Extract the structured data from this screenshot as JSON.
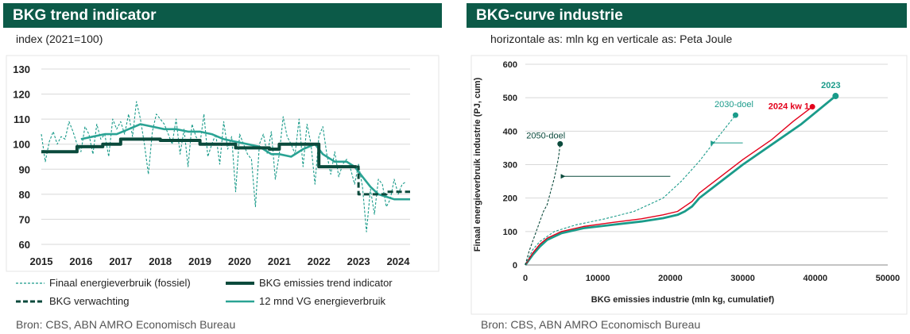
{
  "left": {
    "title": "BKG trend indicator",
    "subtitle": "index (2021=100)",
    "source": "Bron: CBS, ABN AMRO Economisch Bureau",
    "colors": {
      "dark": "#0b4a3c",
      "mid": "#1a9b8a",
      "light": "#2aa394",
      "grid": "#d8d8d8"
    },
    "legend": [
      {
        "label": "Finaal energieverbruik (fossiel)",
        "style": "thin-dashed",
        "color": "#1a9b8a"
      },
      {
        "label": "BKG emissies trend indicator",
        "style": "thick-solid",
        "color": "#0b4a3c"
      },
      {
        "label": "BKG verwachting",
        "style": "thick-dashed",
        "color": "#0b4a3c"
      },
      {
        "label": "12 mnd VG energieverbruik",
        "style": "solid",
        "color": "#2aa394"
      }
    ]
  },
  "right": {
    "title": "BKG-curve industrie",
    "subtitle": "horizontale as: mln kg en verticale as: Peta Joule",
    "source": "Bron: CBS, ABN AMRO Economisch Bureau",
    "colors": {
      "teal": "#1a9b8a",
      "dark": "#0b4a3c",
      "red": "#e3001b",
      "grid": "#d8d8d8"
    }
  },
  "chart_data": [
    {
      "type": "line",
      "title": "BKG trend indicator",
      "ylabel": "index (2021=100)",
      "xlim": [
        2015,
        2024.3
      ],
      "ylim": [
        60,
        130
      ],
      "xticks": [
        "2015",
        "2016",
        "2017",
        "2018",
        "2019",
        "2020",
        "2021",
        "2022",
        "2023",
        "2024"
      ],
      "yticks": [
        "60",
        "70",
        "80",
        "90",
        "100",
        "110",
        "120",
        "130"
      ],
      "grid": "horizontal",
      "series": [
        {
          "name": "Finaal energieverbruik (fossiel)",
          "x": [
            2015.0,
            2015.1,
            2015.2,
            2015.3,
            2015.4,
            2015.5,
            2015.6,
            2015.7,
            2015.8,
            2015.9,
            2016.0,
            2016.1,
            2016.2,
            2016.3,
            2016.4,
            2016.5,
            2016.6,
            2016.7,
            2016.8,
            2016.9,
            2017.0,
            2017.1,
            2017.2,
            2017.3,
            2017.4,
            2017.5,
            2017.6,
            2017.7,
            2017.8,
            2017.9,
            2018.0,
            2018.1,
            2018.2,
            2018.3,
            2018.4,
            2018.5,
            2018.6,
            2018.7,
            2018.8,
            2018.9,
            2019.0,
            2019.1,
            2019.2,
            2019.3,
            2019.4,
            2019.5,
            2019.6,
            2019.7,
            2019.8,
            2019.9,
            2020.0,
            2020.1,
            2020.2,
            2020.3,
            2020.4,
            2020.5,
            2020.6,
            2020.7,
            2020.8,
            2020.9,
            2021.0,
            2021.1,
            2021.2,
            2021.3,
            2021.4,
            2021.5,
            2021.6,
            2021.7,
            2021.8,
            2021.9,
            2022.0,
            2022.1,
            2022.2,
            2022.3,
            2022.4,
            2022.5,
            2022.6,
            2022.7,
            2022.8,
            2022.9,
            2023.0,
            2023.1,
            2023.2,
            2023.3,
            2023.4,
            2023.5,
            2023.6,
            2023.7,
            2023.8,
            2023.9,
            2024.0,
            2024.1,
            2024.2
          ],
          "values": [
            104,
            93,
            101,
            105,
            100,
            103,
            102,
            109,
            105,
            100,
            97,
            107,
            104,
            96,
            108,
            102,
            104,
            95,
            110,
            106,
            109,
            104,
            112,
            103,
            117,
            110,
            100,
            88,
            105,
            112,
            110,
            108,
            104,
            100,
            110,
            96,
            106,
            91,
            108,
            103,
            100,
            112,
            95,
            100,
            104,
            92,
            109,
            98,
            103,
            81,
            104,
            100,
            96,
            94,
            75,
            100,
            104,
            96,
            105,
            86,
            96,
            111,
            103,
            100,
            96,
            110,
            91,
            108,
            100,
            84,
            103,
            107,
            96,
            88,
            97,
            87,
            92,
            94,
            90,
            84,
            92,
            83,
            65,
            82,
            72,
            86,
            84,
            75,
            78,
            86,
            80,
            84,
            85
          ]
        },
        {
          "name": "BKG emissies trend indicator",
          "x": [
            2015.0,
            2015.9,
            2015.9,
            2016.55,
            2016.55,
            2017.0,
            2017.0,
            2018.0,
            2018.0,
            2019.0,
            2019.0,
            2019.9,
            2019.9,
            2020.75,
            2020.75,
            2021.0,
            2021.0,
            2021.9,
            2021.9,
            2022.0,
            2022.0,
            2022.95
          ],
          "values": [
            97,
            97,
            99,
            99,
            100,
            100,
            102,
            102,
            101.5,
            101.5,
            100,
            100,
            98.5,
            98.5,
            98,
            98,
            100,
            100,
            100,
            100,
            91,
            91
          ]
        },
        {
          "name": "BKG verwachting",
          "x": [
            2022.95,
            2023.0,
            2023.0,
            2023.7,
            2023.7,
            2024.3
          ],
          "values": [
            91,
            91,
            80,
            80,
            81,
            81
          ]
        },
        {
          "name": "12 mnd VG energieverbruik",
          "x": [
            2016.0,
            2016.3,
            2016.6,
            2016.9,
            2017.2,
            2017.5,
            2017.8,
            2018.1,
            2018.4,
            2018.7,
            2019.0,
            2019.3,
            2019.6,
            2019.9,
            2020.2,
            2020.5,
            2020.8,
            2021.0,
            2021.3,
            2021.6,
            2021.9,
            2022.1,
            2022.4,
            2022.7,
            2022.9,
            2023.1,
            2023.3,
            2023.5,
            2023.7,
            2023.9,
            2024.1,
            2024.3
          ],
          "values": [
            102,
            103,
            104,
            104,
            106,
            108,
            107,
            106,
            106,
            105,
            105,
            104,
            102,
            101,
            100,
            99,
            96,
            96,
            95,
            98,
            100,
            96,
            93,
            93,
            91,
            87,
            83,
            80,
            79,
            78,
            78,
            78
          ]
        }
      ]
    },
    {
      "type": "line",
      "title": "BKG-curve industrie",
      "xlabel": "BKG emissies industrie (mln kg, cumulatief)",
      "ylabel": "Finaal energieverbruik industrie (PJ, cum)",
      "xlim": [
        0,
        50000
      ],
      "ylim": [
        0,
        600
      ],
      "xticks": [
        "0",
        "10000",
        "20000",
        "30000",
        "40000",
        "50000"
      ],
      "yticks": [
        "0",
        "100",
        "200",
        "300",
        "400",
        "500",
        "600"
      ],
      "grid": "horizontal",
      "series": [
        {
          "name": "2023",
          "x": [
            0,
            1000,
            2000,
            3000,
            5000,
            8000,
            12000,
            16000,
            19000,
            21000,
            22000,
            23000,
            24000,
            27000,
            30000,
            34000,
            38000,
            42800
          ],
          "values": [
            0,
            30,
            55,
            75,
            95,
            110,
            120,
            130,
            140,
            150,
            160,
            175,
            200,
            250,
            300,
            360,
            420,
            505
          ]
        },
        {
          "name": "2024 kw 1",
          "x": [
            0,
            1000,
            2000,
            3000,
            5000,
            8000,
            12000,
            16000,
            19000,
            21000,
            22000,
            23000,
            24000,
            27000,
            30000,
            34000,
            37000,
            39600
          ],
          "values": [
            0,
            35,
            62,
            80,
            100,
            115,
            127,
            138,
            150,
            160,
            175,
            190,
            215,
            265,
            315,
            375,
            430,
            473
          ]
        },
        {
          "name": "2030-doel",
          "x": [
            0,
            1000,
            2000,
            4000,
            7000,
            11000,
            15000,
            19000,
            21500,
            24000,
            26500,
            29000
          ],
          "values": [
            0,
            45,
            70,
            100,
            120,
            138,
            160,
            200,
            250,
            310,
            380,
            448
          ]
        },
        {
          "name": "2050-doel",
          "x": [
            0,
            500,
            1000,
            1500,
            2000,
            2500,
            3000,
            3500,
            4000,
            4300,
            4600,
            4800
          ],
          "values": [
            0,
            40,
            70,
            100,
            130,
            160,
            180,
            220,
            260,
            290,
            325,
            362
          ]
        }
      ],
      "annotations": [
        {
          "text": "2050-doel",
          "x": 4800,
          "y": 362,
          "color": "#0b4a3c"
        },
        {
          "text": "2030-doel",
          "x": 29000,
          "y": 448,
          "color": "#1a9b8a"
        },
        {
          "text": "2024 kw 1",
          "x": 39600,
          "y": 473,
          "color": "#e3001b"
        },
        {
          "text": "2023",
          "x": 42800,
          "y": 505,
          "color": "#1a9b8a"
        }
      ],
      "arrows": [
        {
          "from": [
            20000,
            265
          ],
          "to": [
            4800,
            265
          ]
        },
        {
          "from": [
            26500,
            365
          ],
          "to": [
            25700,
            365
          ]
        }
      ]
    }
  ]
}
